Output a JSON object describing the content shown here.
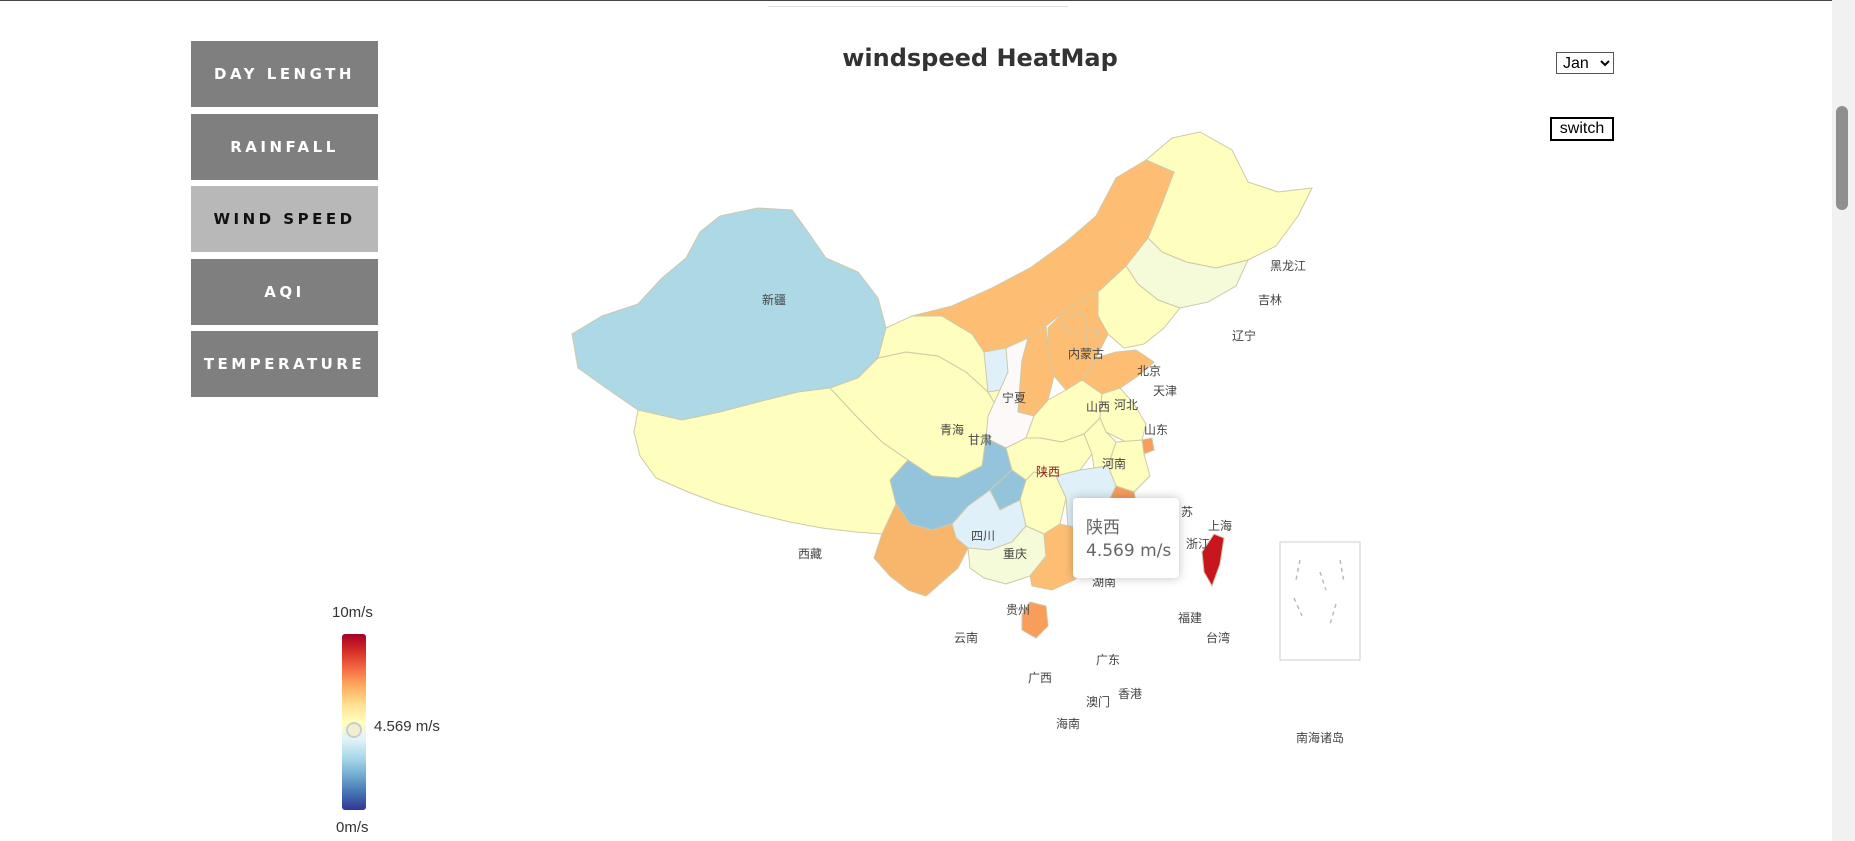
{
  "nav": {
    "items": [
      {
        "label": "DAY LENGTH"
      },
      {
        "label": "RAINFALL"
      },
      {
        "label": "WIND SPEED"
      },
      {
        "label": "AQI"
      },
      {
        "label": "TEMPERATURE"
      }
    ],
    "active": "WIND SPEED"
  },
  "title": "windspeed HeatMap",
  "month_select": {
    "value": "Jan"
  },
  "switch_label": "switch",
  "tooltip": {
    "name": "陕西",
    "value": "4.569 m/s"
  },
  "visual_map": {
    "max_label": "10m/s",
    "min_label": "0m/s",
    "current_label": "4.569 m/s",
    "current_value": 4.569,
    "min": 0,
    "max": 10
  },
  "map": {
    "provinces": {
      "xinjiang": "新疆",
      "xizang": "西藏",
      "qinghai": "青海",
      "gansu": "甘肃",
      "neimenggu": "内蒙古",
      "heilongjiang": "黑龙江",
      "jilin": "吉林",
      "liaoning": "辽宁",
      "beijing": "北京",
      "tianjin": "天津",
      "hebei": "河北",
      "shanxi": "山西",
      "shandong": "山东",
      "ningxia": "宁夏",
      "shaanxi": "陕西",
      "henan": "河南",
      "jiangsu": "苏",
      "shanghai": "上海",
      "zhejiang": "浙江",
      "sichuan": "四川",
      "chongqing": "重庆",
      "hunan": "湖南",
      "guizhou": "贵州",
      "yunnan": "云南",
      "guangxi": "广西",
      "guangdong": "广东",
      "fujian": "福建",
      "taiwan": "台湾",
      "aomen": "澳门",
      "xianggang": "香港",
      "hainan": "海南",
      "nanhai": "南海诸岛"
    },
    "colors": {
      "light_blue": "#add8e6",
      "pale_yellow": "#fefebf",
      "orange": "#fdbe74",
      "pale_green": "#f5fad8",
      "deep_orange": "#f89d5a",
      "red": "#c8161e",
      "white": "#fdf9f9",
      "pale_blue": "#e0f0f8"
    }
  }
}
